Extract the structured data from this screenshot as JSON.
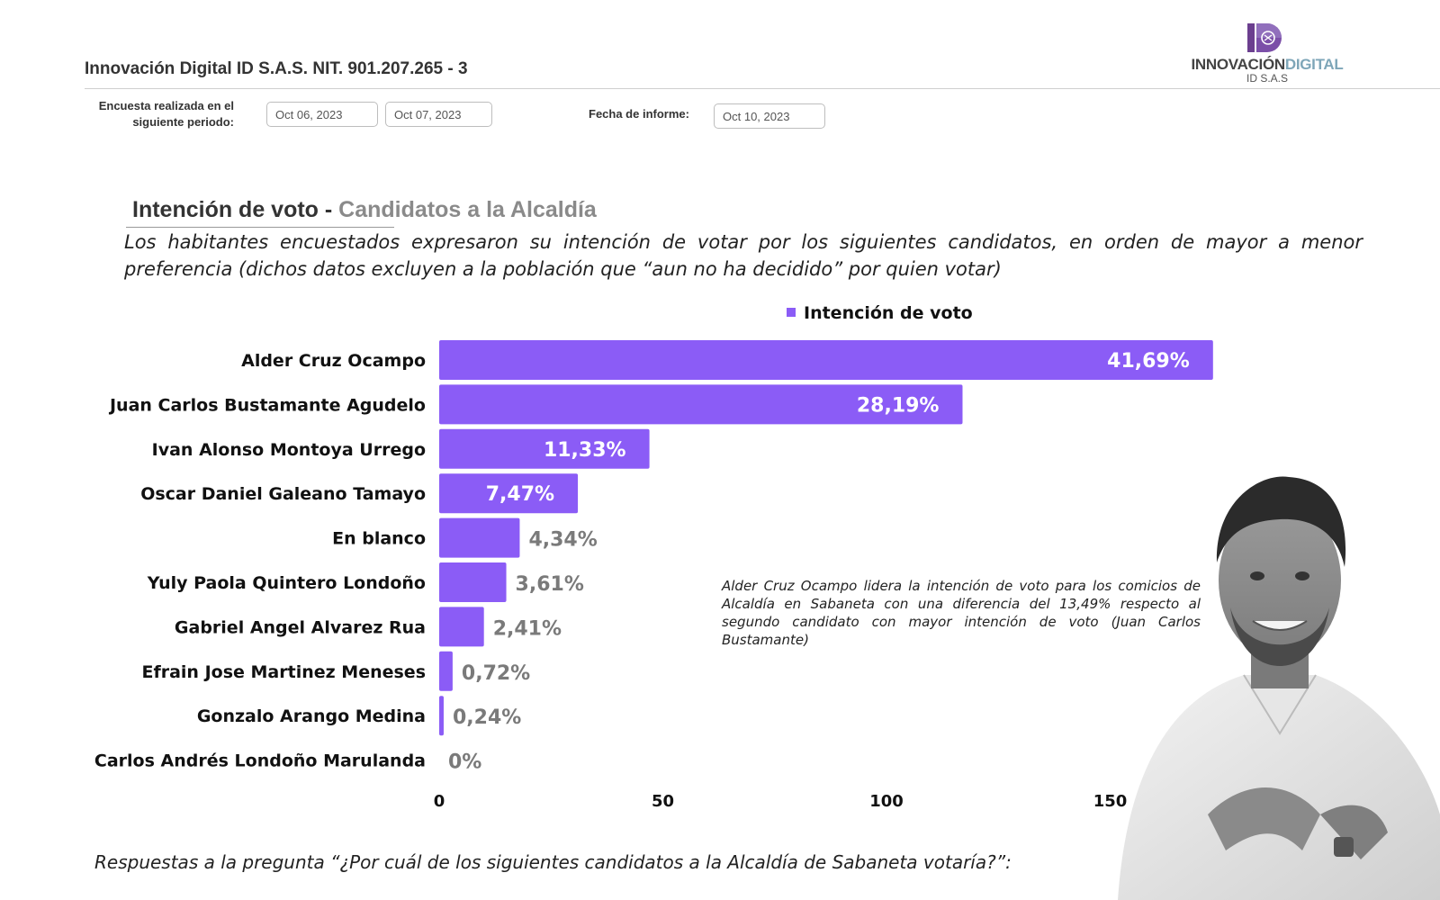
{
  "header": {
    "company": "Innovación Digital ID S.A.S.  NIT. 901.207.265 - 3",
    "logo_text_a": "INNOVACIÓN",
    "logo_text_b": "DIGITAL",
    "logo_sub": "ID S.A.S"
  },
  "survey": {
    "period_label": "Encuesta realizada en el siguiente periodo:",
    "start_date": "Oct 06, 2023",
    "end_date": "Oct 07, 2023",
    "report_label": "Fecha de informe:",
    "report_date": "Oct 10, 2023"
  },
  "title_main": "Intención de voto - ",
  "title_sub": "Candidatos a la Alcaldía",
  "subtitle": "Los habitantes encuestados expresaron su intención de votar por los siguientes candidatos, en orden de mayor a menor preferencia (dichos datos excluyen a la población que “aun no ha decidido” por quien votar)",
  "note": "Alder Cruz Ocampo lidera la intención de voto para los comicios de Alcaldía en Sabaneta con una diferencia del 13,49% respecto al segundo candidato con mayor intención de voto (Juan Carlos Bustamante)",
  "question": "Respuestas a la pregunta “¿Por cuál de los siguientes candidatos a la Alcaldía de Sabaneta votaría?”:",
  "colors": {
    "bar": "#8b5cf6",
    "inside_label": "#ffffff",
    "outside_label": "#7a7a7a"
  },
  "chart_data": {
    "type": "bar",
    "orientation": "horizontal",
    "legend": "Intención de voto",
    "legend_position": "top",
    "categories": [
      "Alder Cruz Ocampo",
      "Juan Carlos Bustamante Agudelo",
      "Ivan Alonso Montoya Urrego",
      "Oscar Daniel Galeano Tamayo",
      "En blanco",
      "Yuly Paola Quintero Londoño",
      "Gabriel Angel Alvarez Rua",
      "Efrain Jose Martinez Meneses",
      "Gonzalo  Arango Medina",
      "Carlos Andrés Londoño Marulanda"
    ],
    "series": [
      {
        "name": "Intención de voto",
        "values": [
          173,
          117,
          47,
          31,
          18,
          15,
          10,
          3,
          1,
          0
        ],
        "labels": [
          "41,69%",
          "28,19%",
          "11,33%",
          "7,47%",
          "4,34%",
          "3,61%",
          "2,41%",
          "0,72%",
          "0,24%",
          "0%"
        ]
      }
    ],
    "x_ticks": [
      "0",
      "50",
      "100",
      "150"
    ],
    "xlim": [
      0,
      180
    ],
    "grid": false
  }
}
